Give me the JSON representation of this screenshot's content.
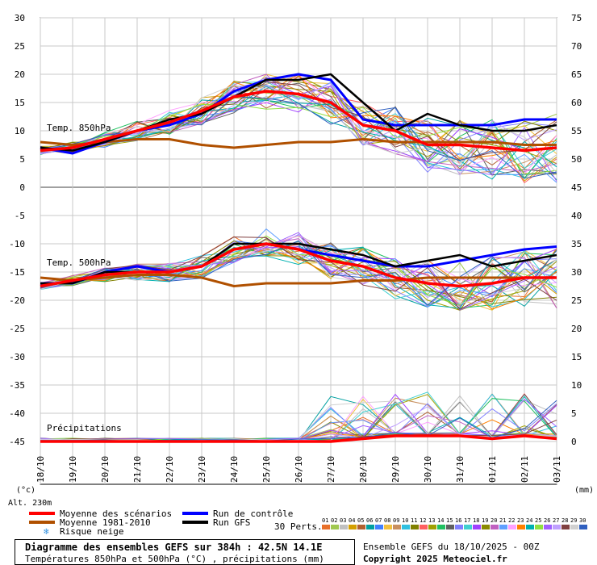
{
  "chart_data": {
    "type": "line",
    "x": [
      "18/10",
      "19/10",
      "20/10",
      "21/10",
      "22/10",
      "23/10",
      "24/10",
      "25/10",
      "26/10",
      "27/10",
      "28/10",
      "29/10",
      "30/10",
      "31/10",
      "01/11",
      "02/11",
      "03/11"
    ],
    "y_left_ticks": [
      30,
      25,
      20,
      15,
      10,
      5,
      0,
      -5,
      -10,
      -15,
      -20,
      -25,
      -30,
      -35,
      -40,
      -45
    ],
    "y_right_ticks": [
      75,
      70,
      65,
      60,
      55,
      50,
      45,
      40,
      35,
      30,
      25,
      20,
      15,
      10,
      5,
      0
    ],
    "ylim_left": [
      -45,
      30
    ],
    "ylim_right": [
      0,
      75
    ],
    "unit_left": "(°c)",
    "unit_right": "(mm)",
    "altitude": "Alt. 230m",
    "panel_labels": {
      "t850": "Temp. 850hPa",
      "t500": "Temp. 500hPa",
      "precip": "Précipitations"
    },
    "legend": {
      "mean": "Moyenne des scénarios",
      "clim": "Moyenne 1981-2010",
      "snow": "Risque neige",
      "control": "Run de contrôle",
      "gfs": "Run GFS",
      "perts": "30 Perts."
    },
    "pert_labels": [
      "01",
      "02",
      "03",
      "04",
      "05",
      "06",
      "07",
      "08",
      "09",
      "10",
      "11",
      "12",
      "13",
      "14",
      "15",
      "16",
      "17",
      "18",
      "19",
      "20",
      "21",
      "22",
      "23",
      "24",
      "25",
      "26",
      "27",
      "28",
      "29",
      "30"
    ],
    "pert_colors": [
      "#e8702a",
      "#a0c850",
      "#c0c0c0",
      "#d4a000",
      "#b06030",
      "#00a0a0",
      "#4080ff",
      "#f0c040",
      "#c89060",
      "#30c0e0",
      "#808000",
      "#ff6060",
      "#a0a000",
      "#20c060",
      "#606060",
      "#8080ff",
      "#40d0d0",
      "#a040ff",
      "#8a8a00",
      "#c060c0",
      "#60a0ff",
      "#ffa0ff",
      "#ff8000",
      "#00b0b0",
      "#90e040",
      "#a060ff",
      "#c0a0ff",
      "#804040",
      "#d0d0d0",
      "#3060c0"
    ],
    "colors": {
      "mean": "#ff0000",
      "clim": "#b05000",
      "control": "#0000ff",
      "gfs": "#000000",
      "grid": "#c8c8c8",
      "zero": "#a0a0a0"
    },
    "series": [
      {
        "key": "t850_mean",
        "values": [
          6.5,
          7,
          8.5,
          10,
          11.5,
          13.5,
          16,
          17,
          16.5,
          15,
          11,
          10,
          7.5,
          7.5,
          7,
          6.5,
          7
        ]
      },
      {
        "key": "t850_clim",
        "values": [
          8,
          7.5,
          8,
          8.5,
          8.5,
          7.5,
          7,
          7.5,
          8,
          8,
          8.5,
          8,
          8,
          8,
          8,
          7.5,
          7.5
        ]
      },
      {
        "key": "t850_control",
        "values": [
          7,
          6,
          8,
          10,
          11,
          13,
          17,
          19,
          20,
          19,
          12,
          11,
          11,
          11,
          11,
          12,
          12
        ]
      },
      {
        "key": "t850_gfs",
        "values": [
          7,
          6.5,
          8,
          10,
          12,
          13,
          16,
          19,
          19,
          20,
          15,
          10,
          13,
          11,
          10,
          10,
          11
        ]
      },
      {
        "key": "t500_mean",
        "values": [
          -17.5,
          -16.5,
          -15.5,
          -15,
          -15,
          -14,
          -11,
          -10,
          -11,
          -13,
          -14,
          -16,
          -17,
          -17.5,
          -17,
          -16,
          -16
        ]
      },
      {
        "key": "t500_clim",
        "values": [
          -16,
          -16.5,
          -16,
          -15.5,
          -15.5,
          -16,
          -17.5,
          -17,
          -17,
          -17,
          -16.5,
          -16.5,
          -16,
          -16,
          -16,
          -16,
          -16
        ]
      },
      {
        "key": "t500_control",
        "values": [
          -17,
          -17,
          -15,
          -14,
          -15,
          -14,
          -11,
          -10,
          -11,
          -12,
          -13,
          -14,
          -14,
          -13,
          -12,
          -11,
          -10.5
        ]
      },
      {
        "key": "t500_gfs",
        "values": [
          -17,
          -17,
          -15,
          -15,
          -15,
          -14,
          -10,
          -10,
          -10,
          -11,
          -12,
          -14,
          -13,
          -12,
          -14,
          -13,
          -12
        ]
      },
      {
        "key": "precip_mean",
        "values": [
          0,
          0,
          0,
          0,
          0,
          0,
          0,
          0,
          0,
          0,
          0.5,
          1,
          1,
          1,
          0.5,
          1,
          0.5
        ]
      }
    ]
  },
  "footer": {
    "title": "Diagramme des ensembles GEFS sur 384h : 42.5N 14.1E",
    "subtitle": "Températures 850hPa et 500hPa (°C) , précipitations (mm)",
    "run": "Ensemble GEFS du 18/10/2025 - 00Z",
    "copyright": "Copyright 2025 Meteociel.fr"
  }
}
